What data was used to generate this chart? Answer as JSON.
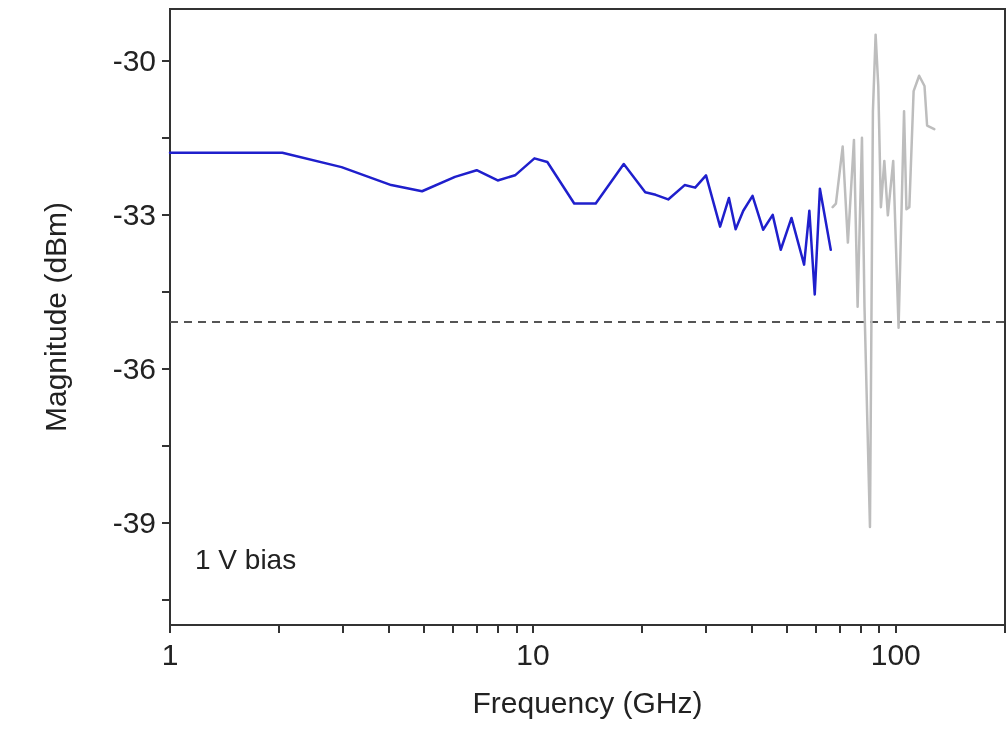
{
  "chart_data": {
    "type": "line",
    "xlabel": "Frequency (GHz)",
    "ylabel": "Magnitude (dBm)",
    "log": "x",
    "grid": false,
    "marker": "none",
    "xlim": [
      1,
      200
    ],
    "ylim": [
      -41,
      -29
    ],
    "xticks": [
      1,
      {
        "value": 2,
        "label": null
      },
      {
        "value": 3,
        "label": null
      },
      {
        "value": 4,
        "label": null
      },
      {
        "value": 5,
        "label": null
      },
      {
        "value": 6,
        "label": null
      },
      {
        "value": 7,
        "label": null
      },
      {
        "value": 8,
        "label": null
      },
      {
        "value": 9,
        "label": null
      },
      10,
      {
        "value": 20,
        "label": null
      },
      {
        "value": 30,
        "label": null
      },
      {
        "value": 40,
        "label": null
      },
      {
        "value": 50,
        "label": null
      },
      {
        "value": 60,
        "label": null
      },
      {
        "value": 70,
        "label": null
      },
      {
        "value": 80,
        "label": null
      },
      {
        "value": 90,
        "label": null
      },
      100,
      {
        "value": 200,
        "label": null
      }
    ],
    "yticks": [
      {
        "value": -40.5,
        "label": null
      },
      -39,
      {
        "value": -37.5,
        "label": null
      },
      -36,
      {
        "value": -34.5,
        "label": null
      },
      -33,
      {
        "value": -31.5,
        "label": null
      },
      -30
    ],
    "series": [
      {
        "color": "#1f1fcc",
        "line_style": "solid",
        "x": [
          1,
          2.04,
          2.97,
          4.07,
          4.95,
          6.1,
          7.0,
          8.0,
          8.93,
          10.1,
          10.96,
          13.0,
          14.9,
          17.8,
          20.4,
          21.8,
          23.6,
          26.2,
          28.0,
          30.0,
          32.8,
          34.7,
          36.2,
          38.0,
          40.3,
          43.1,
          45.8,
          48.2,
          51.6,
          55.9,
          57.8,
          59.8,
          61.8,
          66.2
        ],
        "values": [
          -31.8,
          -31.8,
          -32.08,
          -32.43,
          -32.55,
          -32.27,
          -32.14,
          -32.34,
          -32.24,
          -31.91,
          -31.98,
          -32.79,
          -32.79,
          -32.02,
          -32.57,
          -32.62,
          -32.71,
          -32.43,
          -32.48,
          -32.24,
          -33.24,
          -32.68,
          -33.29,
          -32.93,
          -32.64,
          -33.3,
          -33.01,
          -33.69,
          -33.07,
          -33.98,
          -32.93,
          -34.56,
          -32.5,
          -33.69
        ]
      },
      {
        "color": "#bdbdbd",
        "line_style": "solid",
        "x": [
          67.0,
          68.4,
          71.4,
          73.8,
          76.7,
          78.5,
          80.7,
          82,
          84.9,
          86.5,
          88,
          89.5,
          91,
          93,
          95.1,
          98.4,
          101.8,
          105.4,
          107,
          109,
          112,
          116,
          120,
          122,
          127.7
        ],
        "values": [
          -32.86,
          -32.79,
          -31.68,
          -33.55,
          -31.55,
          -34.8,
          -31.51,
          -34.8,
          -39.09,
          -31,
          -29.5,
          -30.5,
          -32.86,
          -31.96,
          -33.02,
          -31.96,
          -35.21,
          -30.99,
          -32.9,
          -32.86,
          -30.6,
          -30.3,
          -30.5,
          -31.27,
          -31.34
        ]
      }
    ],
    "ref_lines": [
      {
        "axis": "y",
        "value": -35.1,
        "color": "#555555",
        "line_style": "dashed"
      }
    ],
    "annotations": [
      "1 V bias"
    ]
  }
}
